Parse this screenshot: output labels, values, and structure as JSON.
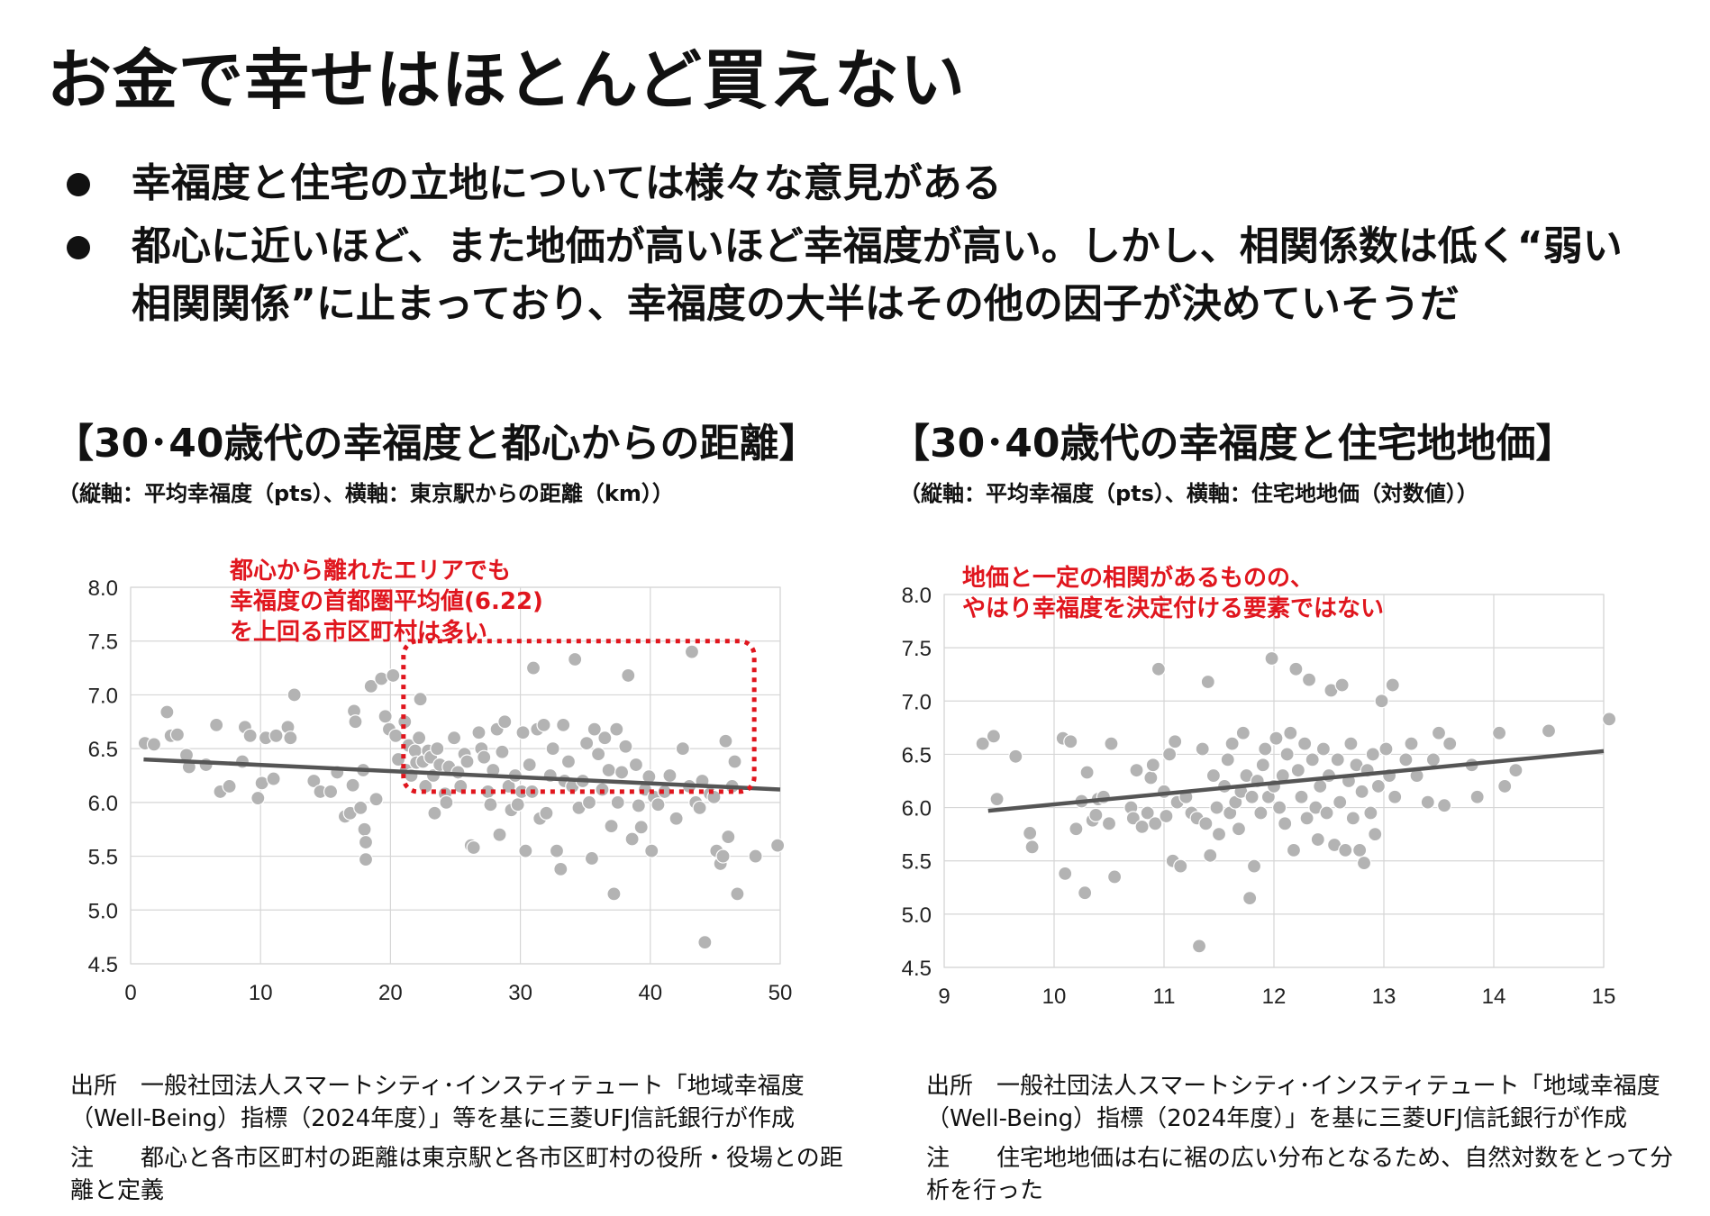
{
  "page": {
    "title": "お金で幸せはほとんど買えない",
    "bullets": [
      "幸福度と住宅の立地については様々な意見がある",
      "都心に近いほど、また地価が高いほど幸福度が高い。しかし、相関係数は低く“弱い相関関係”に止まっており、幸福度の大半はその他の因子が決めていそうだ"
    ]
  },
  "charts": [
    {
      "heading": "【30･40歳代の幸福度と都心からの距離】",
      "subheading": "（縦軸：平均幸福度（pts）、横軸：東京駅からの距離（km））",
      "annotation_lines": [
        "都心から離れたエリアでも",
        "幸福度の首都圏平均値(6.22)",
        "を上回る市区町村は多い"
      ],
      "source_label": "出所",
      "source_text": "一般社団法人スマートシティ･インスティテュート「地域幸福度（Well-Being）指標（2024年度）」等を基に三菱UFJ信託銀行が作成",
      "note_label": "注",
      "note_text": "都心と各市区町村の距離は東京駅と各市区町村の役所・役場との距離と定義"
    },
    {
      "heading": "【30･40歳代の幸福度と住宅地地価】",
      "subheading": "（縦軸：平均幸福度（pts）、横軸：住宅地地価（対数値））",
      "annotation_lines": [
        "地価と一定の相関があるものの、",
        "やはり幸福度を決定付ける要素ではない"
      ],
      "source_label": "出所",
      "source_text": "一般社団法人スマートシティ･インスティテュート「地域幸福度（Well-Being）指標（2024年度）」を基に三菱UFJ信託銀行が作成",
      "note_label": "注",
      "note_text": "住宅地地価は右に裾の広い分布となるため、自然対数をとって分析を行った"
    }
  ],
  "colors": {
    "point": "#b3b3b3",
    "trend": "#555555",
    "annotation": "#e0161e",
    "grid": "#d6d6d6"
  },
  "chart_data": [
    {
      "type": "scatter",
      "title": "",
      "xlabel": "",
      "ylabel": "",
      "xlim": [
        0,
        50
      ],
      "ylim": [
        4.5,
        8.0
      ],
      "xticks": [
        0,
        10,
        20,
        30,
        40,
        50
      ],
      "yticks": [
        4.5,
        5.0,
        5.5,
        6.0,
        6.5,
        7.0,
        7.5,
        8.0
      ],
      "grid": true,
      "trend_line": [
        [
          1,
          6.4
        ],
        [
          50,
          6.12
        ]
      ],
      "highlight_box": {
        "x": [
          21,
          48
        ],
        "y": [
          6.1,
          7.5
        ]
      },
      "points": [
        [
          1.1,
          6.55
        ],
        [
          1.8,
          6.54
        ],
        [
          2.8,
          6.84
        ],
        [
          3.1,
          6.62
        ],
        [
          3.6,
          6.63
        ],
        [
          4.3,
          6.44
        ],
        [
          4.5,
          6.33
        ],
        [
          5.8,
          6.35
        ],
        [
          6.6,
          6.72
        ],
        [
          6.9,
          6.1
        ],
        [
          7.6,
          6.15
        ],
        [
          8.6,
          6.38
        ],
        [
          8.8,
          6.7
        ],
        [
          9.2,
          6.62
        ],
        [
          9.8,
          6.04
        ],
        [
          10.1,
          6.18
        ],
        [
          10.4,
          6.6
        ],
        [
          11,
          6.22
        ],
        [
          11.2,
          6.62
        ],
        [
          12.1,
          6.7
        ],
        [
          12.3,
          6.6
        ],
        [
          12.6,
          7.0
        ],
        [
          14.1,
          6.2
        ],
        [
          14.6,
          6.1
        ],
        [
          15.4,
          6.1
        ],
        [
          15.9,
          6.28
        ],
        [
          16.5,
          5.87
        ],
        [
          16.9,
          5.9
        ],
        [
          17.1,
          6.16
        ],
        [
          17.2,
          6.85
        ],
        [
          17.3,
          6.75
        ],
        [
          17.7,
          5.95
        ],
        [
          17.9,
          6.3
        ],
        [
          18,
          5.75
        ],
        [
          18.1,
          5.63
        ],
        [
          18.1,
          5.47
        ],
        [
          18.5,
          7.08
        ],
        [
          18.9,
          6.03
        ],
        [
          19.3,
          7.15
        ],
        [
          19.6,
          6.8
        ],
        [
          19.9,
          6.68
        ],
        [
          20.2,
          7.18
        ],
        [
          20.4,
          6.62
        ],
        [
          20.6,
          6.4
        ],
        [
          21.1,
          6.75
        ],
        [
          21.2,
          6.3
        ],
        [
          21.4,
          6.53
        ],
        [
          21.6,
          6.25
        ],
        [
          21.9,
          6.48
        ],
        [
          22,
          6.37
        ],
        [
          22.2,
          6.6
        ],
        [
          22.3,
          6.96
        ],
        [
          22.5,
          6.38
        ],
        [
          22.7,
          6.15
        ],
        [
          22.9,
          6.48
        ],
        [
          23.1,
          6.42
        ],
        [
          23.3,
          6.25
        ],
        [
          23.4,
          5.9
        ],
        [
          23.6,
          6.5
        ],
        [
          23.8,
          6.35
        ],
        [
          24.2,
          6.08
        ],
        [
          24.3,
          6.0
        ],
        [
          24.5,
          6.33
        ],
        [
          24.9,
          6.6
        ],
        [
          25.2,
          6.28
        ],
        [
          25.4,
          6.15
        ],
        [
          25.7,
          6.45
        ],
        [
          25.9,
          6.38
        ],
        [
          26.2,
          5.6
        ],
        [
          26.4,
          5.58
        ],
        [
          26.8,
          6.65
        ],
        [
          27,
          6.5
        ],
        [
          27.2,
          6.42
        ],
        [
          27.5,
          6.1
        ],
        [
          27.7,
          5.98
        ],
        [
          27.9,
          6.3
        ],
        [
          28.2,
          6.68
        ],
        [
          28.4,
          5.7
        ],
        [
          28.6,
          6.47
        ],
        [
          28.8,
          6.75
        ],
        [
          29.1,
          6.15
        ],
        [
          29.3,
          5.93
        ],
        [
          29.6,
          6.25
        ],
        [
          29.8,
          5.98
        ],
        [
          30.1,
          6.1
        ],
        [
          30.2,
          6.65
        ],
        [
          30.4,
          5.55
        ],
        [
          30.7,
          6.35
        ],
        [
          30.9,
          6.1
        ],
        [
          31,
          7.25
        ],
        [
          31.3,
          6.68
        ],
        [
          31.5,
          5.85
        ],
        [
          31.8,
          6.72
        ],
        [
          32,
          5.9
        ],
        [
          32.3,
          6.25
        ],
        [
          32.5,
          6.5
        ],
        [
          32.8,
          5.55
        ],
        [
          33.1,
          5.38
        ],
        [
          33.3,
          6.72
        ],
        [
          33.4,
          6.2
        ],
        [
          33.7,
          6.38
        ],
        [
          34,
          6.15
        ],
        [
          34.2,
          7.33
        ],
        [
          34.5,
          5.95
        ],
        [
          34.8,
          6.2
        ],
        [
          35.1,
          6.55
        ],
        [
          35.3,
          6.0
        ],
        [
          35.5,
          5.48
        ],
        [
          35.7,
          6.68
        ],
        [
          36,
          6.45
        ],
        [
          36.3,
          6.12
        ],
        [
          36.5,
          6.6
        ],
        [
          36.8,
          6.3
        ],
        [
          37,
          5.78
        ],
        [
          37.2,
          5.15
        ],
        [
          37.4,
          6.68
        ],
        [
          37.5,
          6.0
        ],
        [
          37.8,
          6.28
        ],
        [
          38.1,
          6.52
        ],
        [
          38.3,
          7.18
        ],
        [
          38.6,
          5.66
        ],
        [
          38.9,
          6.35
        ],
        [
          39.1,
          5.97
        ],
        [
          39.3,
          5.77
        ],
        [
          39.6,
          6.12
        ],
        [
          39.9,
          6.24
        ],
        [
          40.1,
          5.55
        ],
        [
          40.3,
          6.05
        ],
        [
          40.6,
          5.98
        ],
        [
          41.1,
          6.1
        ],
        [
          41.5,
          6.25
        ],
        [
          42,
          5.85
        ],
        [
          42.5,
          6.5
        ],
        [
          43,
          6.15
        ],
        [
          43.2,
          7.4
        ],
        [
          43.5,
          6.0
        ],
        [
          43.8,
          5.95
        ],
        [
          44,
          6.2
        ],
        [
          44.2,
          4.7
        ],
        [
          44.6,
          6.08
        ],
        [
          44.9,
          6.05
        ],
        [
          45.1,
          5.55
        ],
        [
          45.4,
          5.43
        ],
        [
          45.6,
          5.5
        ],
        [
          45.8,
          6.57
        ],
        [
          46,
          5.68
        ],
        [
          46.3,
          6.15
        ],
        [
          46.5,
          6.38
        ],
        [
          46.7,
          5.15
        ],
        [
          48.1,
          5.5
        ],
        [
          49.8,
          5.6
        ]
      ]
    },
    {
      "type": "scatter",
      "title": "",
      "xlabel": "",
      "ylabel": "",
      "xlim": [
        9,
        15
      ],
      "ylim": [
        4.5,
        8.0
      ],
      "xticks": [
        9,
        10,
        11,
        12,
        13,
        14,
        15
      ],
      "yticks": [
        4.5,
        5.0,
        5.5,
        6.0,
        6.5,
        7.0,
        7.5,
        8.0
      ],
      "grid": true,
      "trend_line": [
        [
          9.4,
          5.97
        ],
        [
          15,
          6.53
        ]
      ],
      "points": [
        [
          9.35,
          6.6
        ],
        [
          9.45,
          6.67
        ],
        [
          9.48,
          6.08
        ],
        [
          9.65,
          6.48
        ],
        [
          9.78,
          5.76
        ],
        [
          9.8,
          5.63
        ],
        [
          10.08,
          6.65
        ],
        [
          10.1,
          5.38
        ],
        [
          10.15,
          6.62
        ],
        [
          10.2,
          5.8
        ],
        [
          10.25,
          6.06
        ],
        [
          10.28,
          5.2
        ],
        [
          10.3,
          6.33
        ],
        [
          10.35,
          5.88
        ],
        [
          10.38,
          5.93
        ],
        [
          10.4,
          6.08
        ],
        [
          10.45,
          6.1
        ],
        [
          10.5,
          5.85
        ],
        [
          10.52,
          6.6
        ],
        [
          10.55,
          5.35
        ],
        [
          10.7,
          6.0
        ],
        [
          10.72,
          5.9
        ],
        [
          10.75,
          6.35
        ],
        [
          10.8,
          5.82
        ],
        [
          10.85,
          5.95
        ],
        [
          10.88,
          6.28
        ],
        [
          10.9,
          6.4
        ],
        [
          10.92,
          5.85
        ],
        [
          10.95,
          7.3
        ],
        [
          11,
          6.15
        ],
        [
          11.02,
          5.92
        ],
        [
          11.05,
          6.5
        ],
        [
          11.08,
          5.5
        ],
        [
          11.1,
          6.62
        ],
        [
          11.12,
          6.05
        ],
        [
          11.15,
          5.45
        ],
        [
          11.2,
          6.1
        ],
        [
          11.25,
          5.95
        ],
        [
          11.3,
          5.9
        ],
        [
          11.32,
          4.7
        ],
        [
          11.35,
          6.55
        ],
        [
          11.38,
          5.85
        ],
        [
          11.4,
          7.18
        ],
        [
          11.42,
          5.55
        ],
        [
          11.45,
          6.3
        ],
        [
          11.48,
          6.0
        ],
        [
          11.5,
          5.75
        ],
        [
          11.55,
          6.2
        ],
        [
          11.58,
          6.45
        ],
        [
          11.6,
          5.95
        ],
        [
          11.62,
          6.6
        ],
        [
          11.65,
          6.05
        ],
        [
          11.68,
          5.8
        ],
        [
          11.7,
          6.15
        ],
        [
          11.72,
          6.7
        ],
        [
          11.75,
          6.3
        ],
        [
          11.78,
          5.15
        ],
        [
          11.8,
          6.1
        ],
        [
          11.82,
          5.45
        ],
        [
          11.85,
          6.25
        ],
        [
          11.88,
          5.95
        ],
        [
          11.9,
          6.4
        ],
        [
          11.92,
          6.55
        ],
        [
          11.95,
          6.1
        ],
        [
          11.98,
          7.4
        ],
        [
          12,
          6.2
        ],
        [
          12.02,
          6.65
        ],
        [
          12.05,
          6.0
        ],
        [
          12.08,
          6.3
        ],
        [
          12.1,
          5.85
        ],
        [
          12.12,
          6.5
        ],
        [
          12.15,
          6.7
        ],
        [
          12.18,
          5.6
        ],
        [
          12.2,
          7.3
        ],
        [
          12.22,
          6.35
        ],
        [
          12.25,
          6.1
        ],
        [
          12.28,
          6.6
        ],
        [
          12.3,
          5.9
        ],
        [
          12.32,
          7.2
        ],
        [
          12.35,
          6.45
        ],
        [
          12.38,
          6.0
        ],
        [
          12.4,
          5.7
        ],
        [
          12.42,
          6.2
        ],
        [
          12.45,
          6.55
        ],
        [
          12.48,
          5.95
        ],
        [
          12.5,
          6.3
        ],
        [
          12.52,
          7.1
        ],
        [
          12.55,
          5.65
        ],
        [
          12.58,
          6.45
        ],
        [
          12.6,
          6.05
        ],
        [
          12.62,
          7.15
        ],
        [
          12.65,
          5.6
        ],
        [
          12.68,
          6.25
        ],
        [
          12.7,
          6.6
        ],
        [
          12.72,
          5.9
        ],
        [
          12.75,
          6.4
        ],
        [
          12.78,
          5.6
        ],
        [
          12.8,
          6.15
        ],
        [
          12.82,
          5.48
        ],
        [
          12.85,
          6.35
        ],
        [
          12.88,
          5.95
        ],
        [
          12.9,
          6.5
        ],
        [
          12.92,
          5.75
        ],
        [
          12.95,
          6.2
        ],
        [
          12.98,
          7.0
        ],
        [
          13.02,
          6.55
        ],
        [
          13.05,
          6.3
        ],
        [
          13.08,
          7.15
        ],
        [
          13.1,
          6.1
        ],
        [
          13.2,
          6.45
        ],
        [
          13.25,
          6.6
        ],
        [
          13.3,
          6.3
        ],
        [
          13.4,
          6.05
        ],
        [
          13.45,
          6.45
        ],
        [
          13.5,
          6.7
        ],
        [
          13.55,
          6.02
        ],
        [
          13.6,
          6.6
        ],
        [
          13.8,
          6.4
        ],
        [
          13.85,
          6.1
        ],
        [
          14.05,
          6.7
        ],
        [
          14.1,
          6.2
        ],
        [
          14.2,
          6.35
        ],
        [
          14.5,
          6.72
        ],
        [
          15.05,
          6.83
        ]
      ]
    }
  ]
}
